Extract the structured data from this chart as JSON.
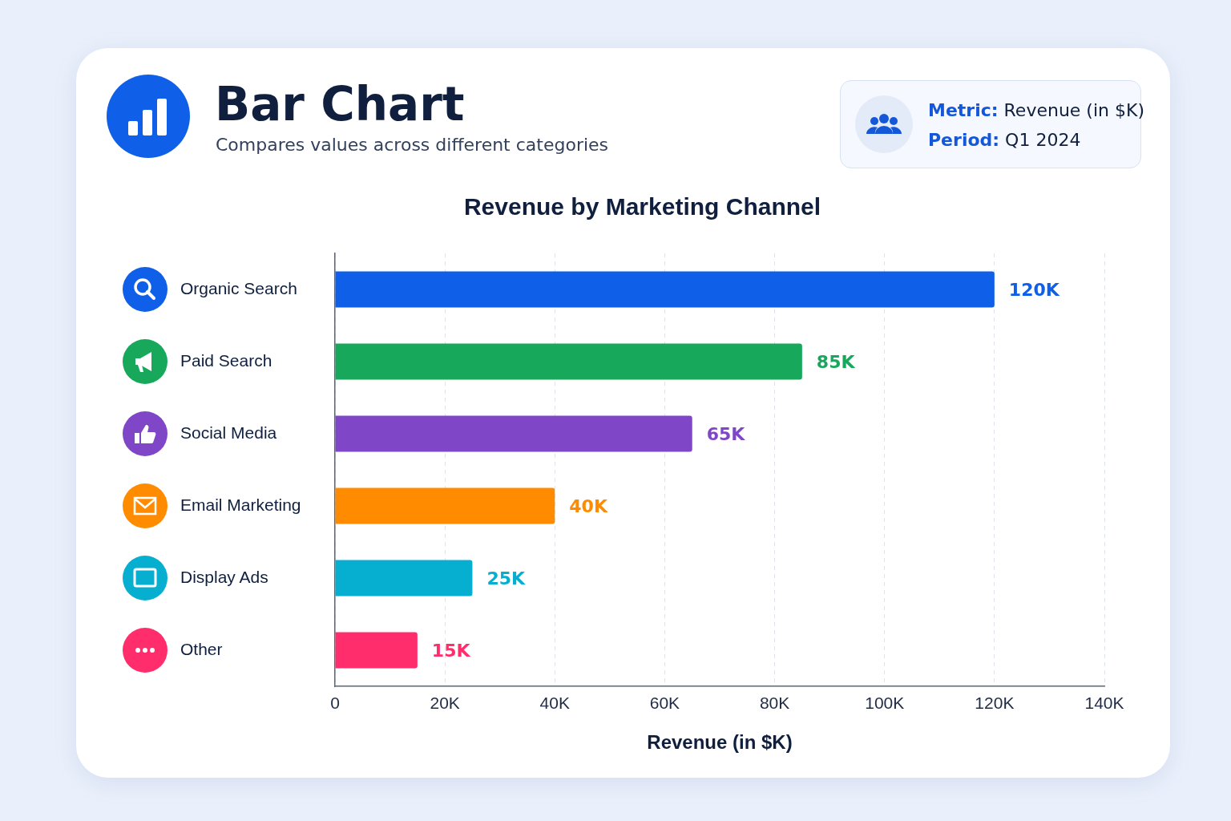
{
  "chart_data": {
    "type": "bar",
    "orientation": "horizontal",
    "title": "Revenue by Marketing Channel",
    "xlabel": "Revenue (in $K)",
    "categories": [
      "Organic Search",
      "Paid Search",
      "Social Media",
      "Email Marketing",
      "Display Ads",
      "Other"
    ],
    "values": [
      120,
      85,
      65,
      40,
      25,
      15
    ],
    "colors": [
      "#0f5fe8",
      "#17a85c",
      "#7f47c8",
      "#ff8c00",
      "#06aed0",
      "#ff2d6b"
    ],
    "value_labels": [
      "120K",
      "85K",
      "65K",
      "40K",
      "25K",
      "15K"
    ],
    "xlim": [
      0,
      140
    ],
    "xticks": [
      0,
      {
        "value": 20,
        "label": "20K"
      },
      {
        "value": 40,
        "label": "40K"
      },
      {
        "value": 60,
        "label": "60K"
      },
      {
        "value": 80,
        "label": "80K"
      },
      {
        "value": 100,
        "label": "100K"
      },
      {
        "value": 120,
        "label": "120K"
      },
      {
        "value": 140,
        "label": "140K"
      }
    ],
    "grid": "x",
    "legend": false,
    "annotations": [
      "Bar Chart",
      "Compares values across different categories",
      "Metric: Revenue (in $K)",
      "Period: Q1 2024"
    ]
  }
}
